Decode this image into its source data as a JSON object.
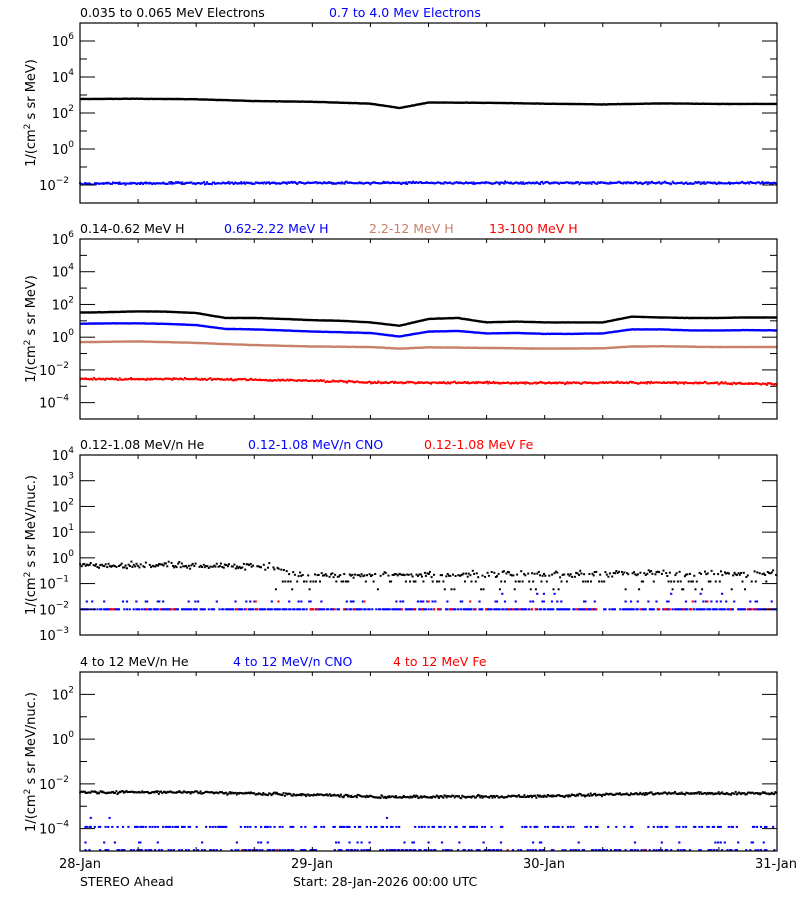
{
  "chart_data": [
    {
      "type": "line",
      "ylabel_parts": [
        "1/(cm",
        "2",
        " s sr MeV)"
      ],
      "yscale": "log",
      "ylim_exp": [
        -3,
        7
      ],
      "yticks_exp": [
        6,
        4,
        2,
        0,
        -2
      ],
      "yminor_exp": [
        7,
        5,
        3,
        1,
        -1,
        -3
      ],
      "xlim_hours": [
        0,
        72
      ],
      "series": [
        {
          "name": "0.035 to 0.065 MeV Electrons",
          "color": "#000000",
          "style": "line",
          "hours": [
            0,
            6,
            12,
            18,
            24,
            30,
            33,
            36,
            42,
            48,
            54,
            60,
            66,
            72
          ],
          "values": [
            600,
            620,
            580,
            460,
            420,
            330,
            190,
            380,
            370,
            330,
            300,
            340,
            320,
            320
          ]
        },
        {
          "name": "0.7 to 4.0 Mev Electrons",
          "color": "#0000ff",
          "style": "scatter",
          "hours": [
            0,
            24,
            48,
            72
          ],
          "values": [
            0.012,
            0.013,
            0.013,
            0.013
          ]
        }
      ]
    },
    {
      "type": "line",
      "ylabel_parts": [
        "1/(cm",
        "2",
        " s sr MeV)"
      ],
      "yscale": "log",
      "ylim_exp": [
        -5,
        6
      ],
      "yticks_exp": [
        6,
        4,
        2,
        0,
        -2,
        -4
      ],
      "yminor_exp": [
        5,
        3,
        1,
        -1,
        -3
      ],
      "xlim_hours": [
        0,
        72
      ],
      "series": [
        {
          "name": "0.14-0.62 MeV H",
          "color": "#000000",
          "style": "line",
          "hours": [
            0,
            3,
            6,
            9,
            12,
            15,
            18,
            21,
            24,
            27,
            30,
            33,
            36,
            39,
            42,
            45,
            48,
            51,
            54,
            57,
            60,
            63,
            66,
            69,
            72
          ],
          "values": [
            32,
            34,
            38,
            36,
            30,
            15,
            15,
            13,
            11,
            10,
            8,
            5,
            13,
            15,
            8,
            9,
            8,
            8,
            8,
            18,
            16,
            15,
            15,
            16,
            16
          ]
        },
        {
          "name": "0.62-2.22 MeV H",
          "color": "#0000ff",
          "style": "line",
          "hours": [
            0,
            3,
            6,
            9,
            12,
            15,
            18,
            21,
            24,
            27,
            30,
            33,
            36,
            39,
            42,
            45,
            48,
            51,
            54,
            57,
            60,
            63,
            66,
            69,
            72
          ],
          "values": [
            6.6,
            7,
            7,
            6.5,
            5.5,
            3.2,
            3,
            2.6,
            2.2,
            2.0,
            1.8,
            1.1,
            2.2,
            2.4,
            1.7,
            1.8,
            1.6,
            1.6,
            1.7,
            3,
            3,
            2.6,
            2.6,
            2.7,
            2.6
          ]
        },
        {
          "name": "2.2-12 MeV H",
          "color": "#c8806a",
          "style": "line",
          "hours": [
            0,
            6,
            12,
            15,
            18,
            24,
            30,
            33,
            36,
            42,
            48,
            54,
            57,
            60,
            66,
            72
          ],
          "values": [
            0.5,
            0.55,
            0.45,
            0.38,
            0.33,
            0.27,
            0.25,
            0.2,
            0.24,
            0.22,
            0.2,
            0.21,
            0.27,
            0.28,
            0.25,
            0.25
          ]
        },
        {
          "name": "13-100 MeV H",
          "color": "#ff0000",
          "style": "scatter",
          "hours": [
            0,
            12,
            24,
            30,
            48,
            60,
            72
          ],
          "values": [
            0.0028,
            0.0028,
            0.0022,
            0.0017,
            0.0016,
            0.0017,
            0.0014
          ]
        }
      ]
    },
    {
      "type": "scatter",
      "ylabel_parts": [
        "1/(cm",
        "2",
        " s sr MeV/nuc.)"
      ],
      "yscale": "log",
      "ylim_exp": [
        -3,
        4
      ],
      "yticks_exp": [
        4,
        3,
        2,
        1,
        0,
        -1,
        -2,
        -3
      ],
      "yminor_exp": [],
      "xlim_hours": [
        0,
        72
      ],
      "series": [
        {
          "name": "0.12-1.08 MeV/n He",
          "color": "#000000",
          "style": "scatter-wide",
          "hours": [
            0,
            10,
            20,
            22,
            40,
            60,
            72
          ],
          "values": [
            0.5,
            0.5,
            0.45,
            0.22,
            0.22,
            0.25,
            0.25
          ],
          "levels": [
            0.12,
            0.06
          ]
        },
        {
          "name": "0.12-1.08 MeV/n CNO",
          "color": "#0000ff",
          "style": "sparse",
          "levels": [
            0.01,
            0.02,
            0.04
          ],
          "level_weights": [
            0.7,
            0.12,
            0.01
          ]
        },
        {
          "name": "0.12-1.08 MeV Fe",
          "color": "#ff0000",
          "style": "sparse",
          "levels": [
            0.01,
            0.02
          ],
          "level_weights": [
            0.12,
            0.01
          ]
        }
      ]
    },
    {
      "type": "scatter",
      "ylabel_parts": [
        "1/(cm",
        "2",
        " s sr MeV/nuc.)"
      ],
      "yscale": "log",
      "ylim_exp": [
        -5,
        3
      ],
      "yticks_exp": [
        2,
        0,
        -2,
        -4
      ],
      "yminor_exp": [
        3,
        1,
        -1,
        -3
      ],
      "xlim_hours": [
        0,
        72
      ],
      "series": [
        {
          "name": "4 to 12 MeV/n He",
          "color": "#000000",
          "style": "scatter",
          "hours": [
            0,
            12,
            24,
            30,
            36,
            48,
            54,
            60,
            72
          ],
          "values": [
            0.0042,
            0.0042,
            0.0032,
            0.0027,
            0.0026,
            0.0028,
            0.0033,
            0.0037,
            0.0038
          ]
        },
        {
          "name": "4 to 12 MeV/n CNO",
          "color": "#0000ff",
          "style": "sparse",
          "levels": [
            0.00012,
            2.4e-05,
            1.1e-05,
            0.0003
          ],
          "level_weights": [
            0.35,
            0.08,
            0.4,
            0.01
          ]
        },
        {
          "name": "4 to 12 MeV Fe",
          "color": "#ff0000",
          "style": "sparse",
          "levels": [
            1.1e-05
          ],
          "level_weights": [
            0.01
          ]
        }
      ]
    }
  ],
  "xaxis": {
    "tick_labels": [
      "28-Jan",
      "29-Jan",
      "30-Jan",
      "31-Jan"
    ],
    "tick_hours": [
      0,
      24,
      48,
      72
    ]
  },
  "footer": {
    "spacecraft": "STEREO Ahead",
    "start": "Start: 28-Jan-2026 00:00 UTC"
  }
}
